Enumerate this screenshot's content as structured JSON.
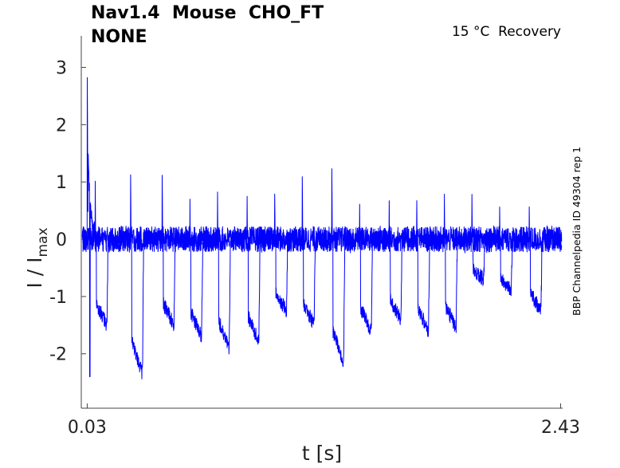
{
  "title": {
    "line1": "Nav1.4  Mouse  CHO_FT",
    "line2": "NONE"
  },
  "annotation": "15 °C  Recovery",
  "side_label": "BBP Channelpedia ID 49304 rep 1",
  "chart_data": {
    "type": "line",
    "title": "Nav1.4  Mouse  CHO_FT NONE",
    "xlabel": "t [s]",
    "ylabel": "I / I_max",
    "ylabel_main": "I / I",
    "ylabel_sub": "max",
    "xlim": [
      0.0,
      2.44
    ],
    "ylim": [
      -2.95,
      3.55
    ],
    "xticks": [
      0.03,
      2.43
    ],
    "xtick_labels": [
      "0.03",
      "2.43"
    ],
    "yticks": [
      -2,
      -1,
      0,
      1,
      2,
      3
    ],
    "ytick_labels": [
      "-2",
      "-1",
      "0",
      "1",
      "2",
      "3"
    ],
    "grid": false,
    "color": "#0000ff",
    "baseline_noise": 0.25,
    "initial_spike": {
      "t": 0.03,
      "peak": 3.1,
      "trough": -2.4
    },
    "pulses": [
      {
        "t": 0.07,
        "peak": 1.45,
        "trough": -1.5
      },
      {
        "t": 0.25,
        "peak": 1.15,
        "trough": -2.35
      },
      {
        "t": 0.41,
        "peak": 1.2,
        "trough": -1.5
      },
      {
        "t": 0.55,
        "peak": 1.15,
        "trough": -1.7
      },
      {
        "t": 0.69,
        "peak": 1.2,
        "trough": -1.9
      },
      {
        "t": 0.84,
        "peak": 1.0,
        "trough": -1.8
      },
      {
        "t": 0.98,
        "peak": 1.0,
        "trough": -1.25
      },
      {
        "t": 1.12,
        "peak": 1.2,
        "trough": -1.5
      },
      {
        "t": 1.27,
        "peak": 1.35,
        "trough": -2.15
      },
      {
        "t": 1.41,
        "peak": 1.0,
        "trough": -1.6
      },
      {
        "t": 1.56,
        "peak": 1.05,
        "trough": -1.4
      },
      {
        "t": 1.7,
        "peak": 0.9,
        "trough": -1.6
      },
      {
        "t": 1.84,
        "peak": 0.95,
        "trough": -1.55
      },
      {
        "t": 1.98,
        "peak": 0.85,
        "trough": -0.7
      },
      {
        "t": 2.12,
        "peak": 0.95,
        "trough": -0.9
      },
      {
        "t": 2.27,
        "peak": 0.85,
        "trough": -1.25
      }
    ]
  }
}
